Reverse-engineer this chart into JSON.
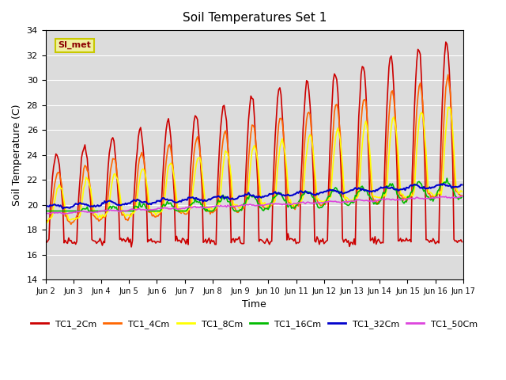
{
  "title": "Soil Temperatures Set 1",
  "xlabel": "Time",
  "ylabel": "Soil Temperature (C)",
  "ylim": [
    14,
    34
  ],
  "bg_color": "#dcdcdc",
  "annotation": "SI_met",
  "annotation_color": "#8B0000",
  "annotation_bg": "#f0f0a0",
  "annotation_border": "#c8c800",
  "xtick_labels": [
    "Jun 2",
    "Jun 3",
    "Jun 4",
    "Jun 5",
    "Jun 6",
    "Jun 7",
    "Jun 8",
    "Jun 9",
    "Jun 10",
    "Jun 11",
    "Jun 12",
    "Jun 13",
    "Jun 14",
    "Jun 15",
    "Jun 16",
    "Jun 17"
  ],
  "series": {
    "TC1_2Cm": {
      "color": "#cc0000",
      "lw": 1.2
    },
    "TC1_4Cm": {
      "color": "#ff6600",
      "lw": 1.2
    },
    "TC1_8Cm": {
      "color": "#ffff00",
      "lw": 1.2
    },
    "TC1_16Cm": {
      "color": "#00bb00",
      "lw": 1.2
    },
    "TC1_32Cm": {
      "color": "#0000cc",
      "lw": 1.5
    },
    "TC1_50Cm": {
      "color": "#dd44dd",
      "lw": 1.2
    }
  }
}
